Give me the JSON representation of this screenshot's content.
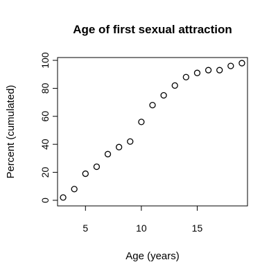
{
  "chart_data": {
    "type": "scatter",
    "title": "Age of first sexual attraction",
    "xlabel": "Age (years)",
    "ylabel": "Percent (cumulated)",
    "xlim": [
      2.5,
      19.5
    ],
    "ylim": [
      -4,
      102
    ],
    "xticks": [
      5,
      10,
      15
    ],
    "yticks": [
      0,
      20,
      40,
      60,
      80,
      100
    ],
    "grid": false,
    "legend": "none",
    "x": [
      3,
      4,
      5,
      6,
      7,
      8,
      9,
      10,
      11,
      12,
      13,
      14,
      15,
      16,
      17,
      18,
      19
    ],
    "y": [
      2,
      8,
      19,
      24,
      33,
      38,
      42,
      56,
      68,
      75,
      82,
      88,
      91,
      93,
      93,
      96,
      98
    ]
  }
}
